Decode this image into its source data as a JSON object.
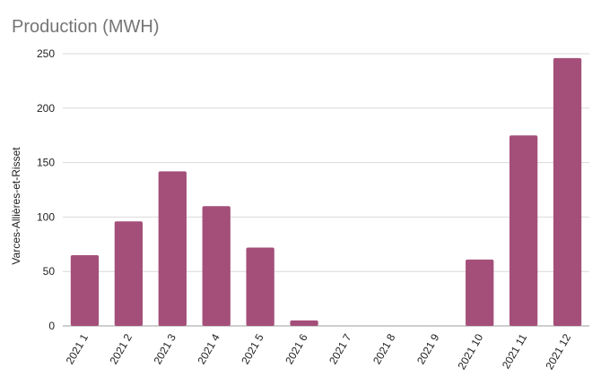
{
  "chart_data": {
    "type": "bar",
    "title": "Production (MWH)",
    "xlabel": "",
    "ylabel": "Varces-Allières-et-Risset",
    "categories": [
      "2021 1",
      "2021 2",
      "2021 3",
      "2021 4",
      "2021 5",
      "2021 6",
      "2021 7",
      "2021 8",
      "2021 9",
      "2021 10",
      "2021 11",
      "2021 12"
    ],
    "values": [
      65,
      96,
      142,
      110,
      72,
      5,
      0,
      0,
      0,
      61,
      175,
      246
    ],
    "ylim": [
      0,
      250
    ],
    "yticks": [
      0,
      50,
      100,
      150,
      200,
      250
    ],
    "grid": true,
    "legend": "none",
    "bar_color": "#a44f7a"
  }
}
